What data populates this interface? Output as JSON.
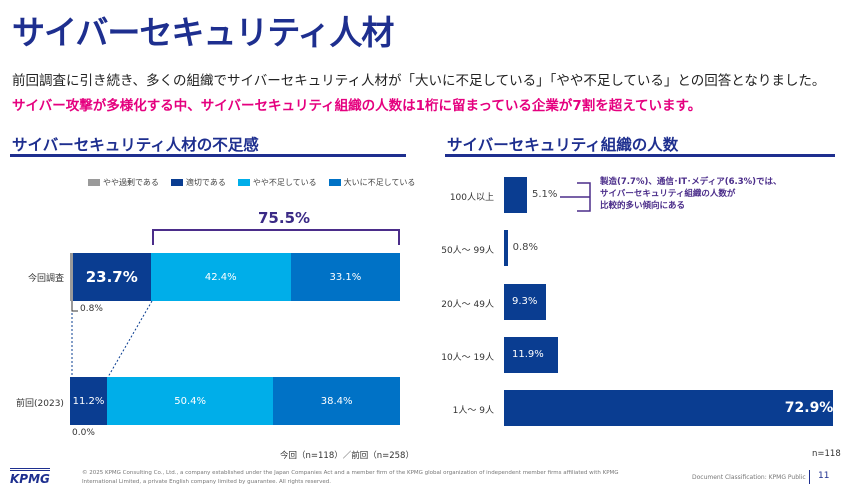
{
  "title": "サイバーセキュリティ人材",
  "lead": "前回調査に引き続き、多くの組織でサイバーセキュリティ人材が「大いに不足している」「やや不足している」との回答となりました。",
  "highlight": "サイバー攻撃が多様化する中、サイバーセキュリティ組織の人数は1桁に留まっている企業が7割を超えています。",
  "colors": {
    "excess": "#9a9a9a",
    "adequate": "#0a3d91",
    "somewhat_short": "#00aee9",
    "very_short": "#0072c6",
    "highlight": "#e5007f",
    "title": "#1e2f8f"
  },
  "chart_data": [
    {
      "type": "bar",
      "stacked": true,
      "orientation": "horizontal",
      "title": "サイバーセキュリティ人材の不足感",
      "legend": [
        "やや過剰である",
        "適切である",
        "やや不足している",
        "大いに不足している"
      ],
      "legend_position": "top-right",
      "categories": [
        "今回調査",
        "前回(2023)"
      ],
      "series": [
        {
          "name": "やや過剰である",
          "values": [
            0.8,
            0.0
          ],
          "labels": [
            "0.8%",
            "0.0%"
          ]
        },
        {
          "name": "適切である",
          "values": [
            23.7,
            11.2
          ],
          "labels": [
            "23.7%",
            "11.2%"
          ]
        },
        {
          "name": "やや不足している",
          "values": [
            42.4,
            50.4
          ],
          "labels": [
            "42.4%",
            "50.4%"
          ]
        },
        {
          "name": "大いに不足している",
          "values": [
            33.1,
            38.4
          ],
          "labels": [
            "33.1%",
            "38.4%"
          ]
        }
      ],
      "annotation": "75.5%",
      "note": "今回（n=118）／前回（n=258）"
    },
    {
      "type": "bar",
      "orientation": "horizontal",
      "title": "サイバーセキュリティ組織の人数",
      "categories": [
        "100人以上",
        "50人～ 99人",
        "20人～ 49人",
        "10人～ 19人",
        "1人～ 9人"
      ],
      "values": [
        5.1,
        0.8,
        9.3,
        11.9,
        72.9
      ],
      "labels": [
        "5.1%",
        "0.8%",
        "9.3%",
        "11.9%",
        "72.9%"
      ],
      "annotation": [
        "製造(7.7%)、通信･IT･メディア(6.3%)では、",
        "サイバーセキュリティ組織の人数が",
        "比較的多い傾向にある"
      ],
      "note": "n=118"
    }
  ],
  "footer": {
    "logo": "KPMG",
    "copyright1": "© 2025 KPMG Consulting Co., Ltd., a company established under the Japan Companies Act and a member firm of the KPMG global organization of independent member firms affiliated with KPMG",
    "copyright2": "International Limited, a private English company limited by guarantee. All rights reserved.",
    "classification": "Document Classification: KPMG Public",
    "page": "11"
  }
}
